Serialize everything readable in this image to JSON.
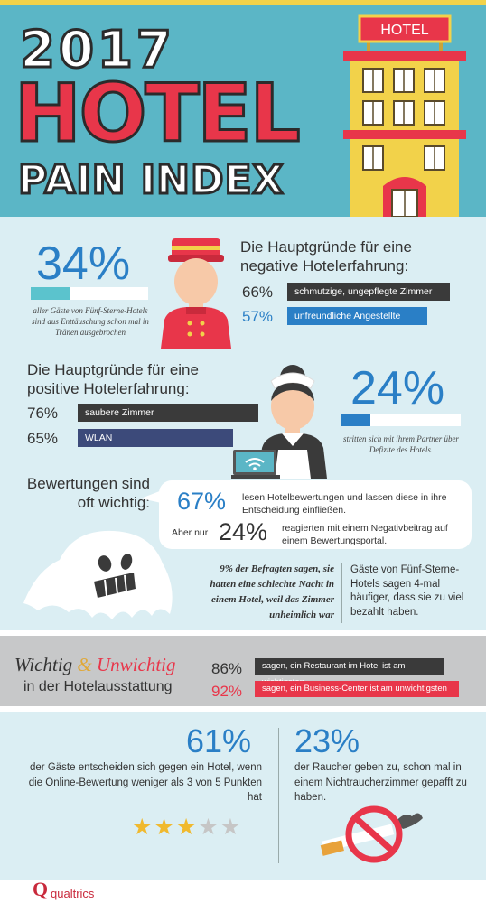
{
  "header": {
    "year": "2017",
    "title": "HOTEL",
    "subtitle": "PAIN INDEX",
    "sign": "HOTEL"
  },
  "tears": {
    "percent": "34%",
    "fraction": 0.34,
    "caption": "aller Gäste von Fünf-Sterne-Hotels sind aus Enttäuschung schon mal in Tränen ausgebrochen"
  },
  "negative": {
    "heading": "Die Hauptgründe für eine negative Hotelerfahrung:",
    "items": [
      {
        "percent": "66%",
        "label": "schmutzige, ungepflegte Zimmer",
        "color": "#3a3a3a"
      },
      {
        "percent": "57%",
        "label": "unfreundliche Angestellte",
        "color": "#2a7fc6"
      }
    ]
  },
  "positive": {
    "heading": "Die Hauptgründe für eine positive Hotelerfahrung:",
    "items": [
      {
        "percent": "76%",
        "label": "saubere Zimmer",
        "color": "#3a3a3a"
      },
      {
        "percent": "65%",
        "label": "WLAN",
        "color": "#3c4a7a"
      }
    ]
  },
  "partner": {
    "percent": "24%",
    "fraction": 0.24,
    "caption": "stritten sich mit ihrem Partner über Defizite des Hotels."
  },
  "reviews": {
    "heading": "Bewertungen sind oft wichtig:",
    "read_percent": "67%",
    "read_text": "lesen Hotelbewertungen und lassen diese in ihre Entscheidung einfließen.",
    "only_label": "Aber nur",
    "reply_percent": "24%",
    "reply_text": "reagierten mit einem Negativbeitrag auf einem Bewertungsportal."
  },
  "creepy": {
    "quote": "9% der Befragten sagen, sie hatten eine schlechte Nacht in einem Hotel, weil das Zimmer unheimlich war"
  },
  "overpaid": {
    "text": "Gäste von Fünf-Sterne-Hotels sagen 4-mal häufiger, dass sie zu viel bezahlt haben."
  },
  "amenities": {
    "title_a": "Wichtig",
    "title_amp": "&",
    "title_b": "Unwichtig",
    "title_sub": "in der Hotelausstattung",
    "items": [
      {
        "percent": "86%",
        "label": "sagen, ein Restaurant im Hotel ist am wichtigsten",
        "color": "#3a3a3a"
      },
      {
        "percent": "92%",
        "label": "sagen, ein Business-Center ist am unwichtigsten",
        "color": "#e8364a"
      }
    ]
  },
  "online": {
    "percent": "61%",
    "text": "der Gäste entscheiden sich gegen ein Hotel, wenn die Online-Bewertung weniger als 3 von 5 Punkten hat",
    "stars_filled": 3,
    "stars_total": 5
  },
  "smokers": {
    "percent": "23%",
    "text": "der Raucher geben zu, schon mal in einem Nichtraucherzimmer gepafft zu haben."
  },
  "footer": {
    "logo_letter": "Q",
    "logo_text": "qualtrics"
  },
  "colors": {
    "accent_blue": "#2a7fc6",
    "accent_red": "#e8364a",
    "accent_yellow": "#f2d24a",
    "teal": "#5bb6c6"
  }
}
